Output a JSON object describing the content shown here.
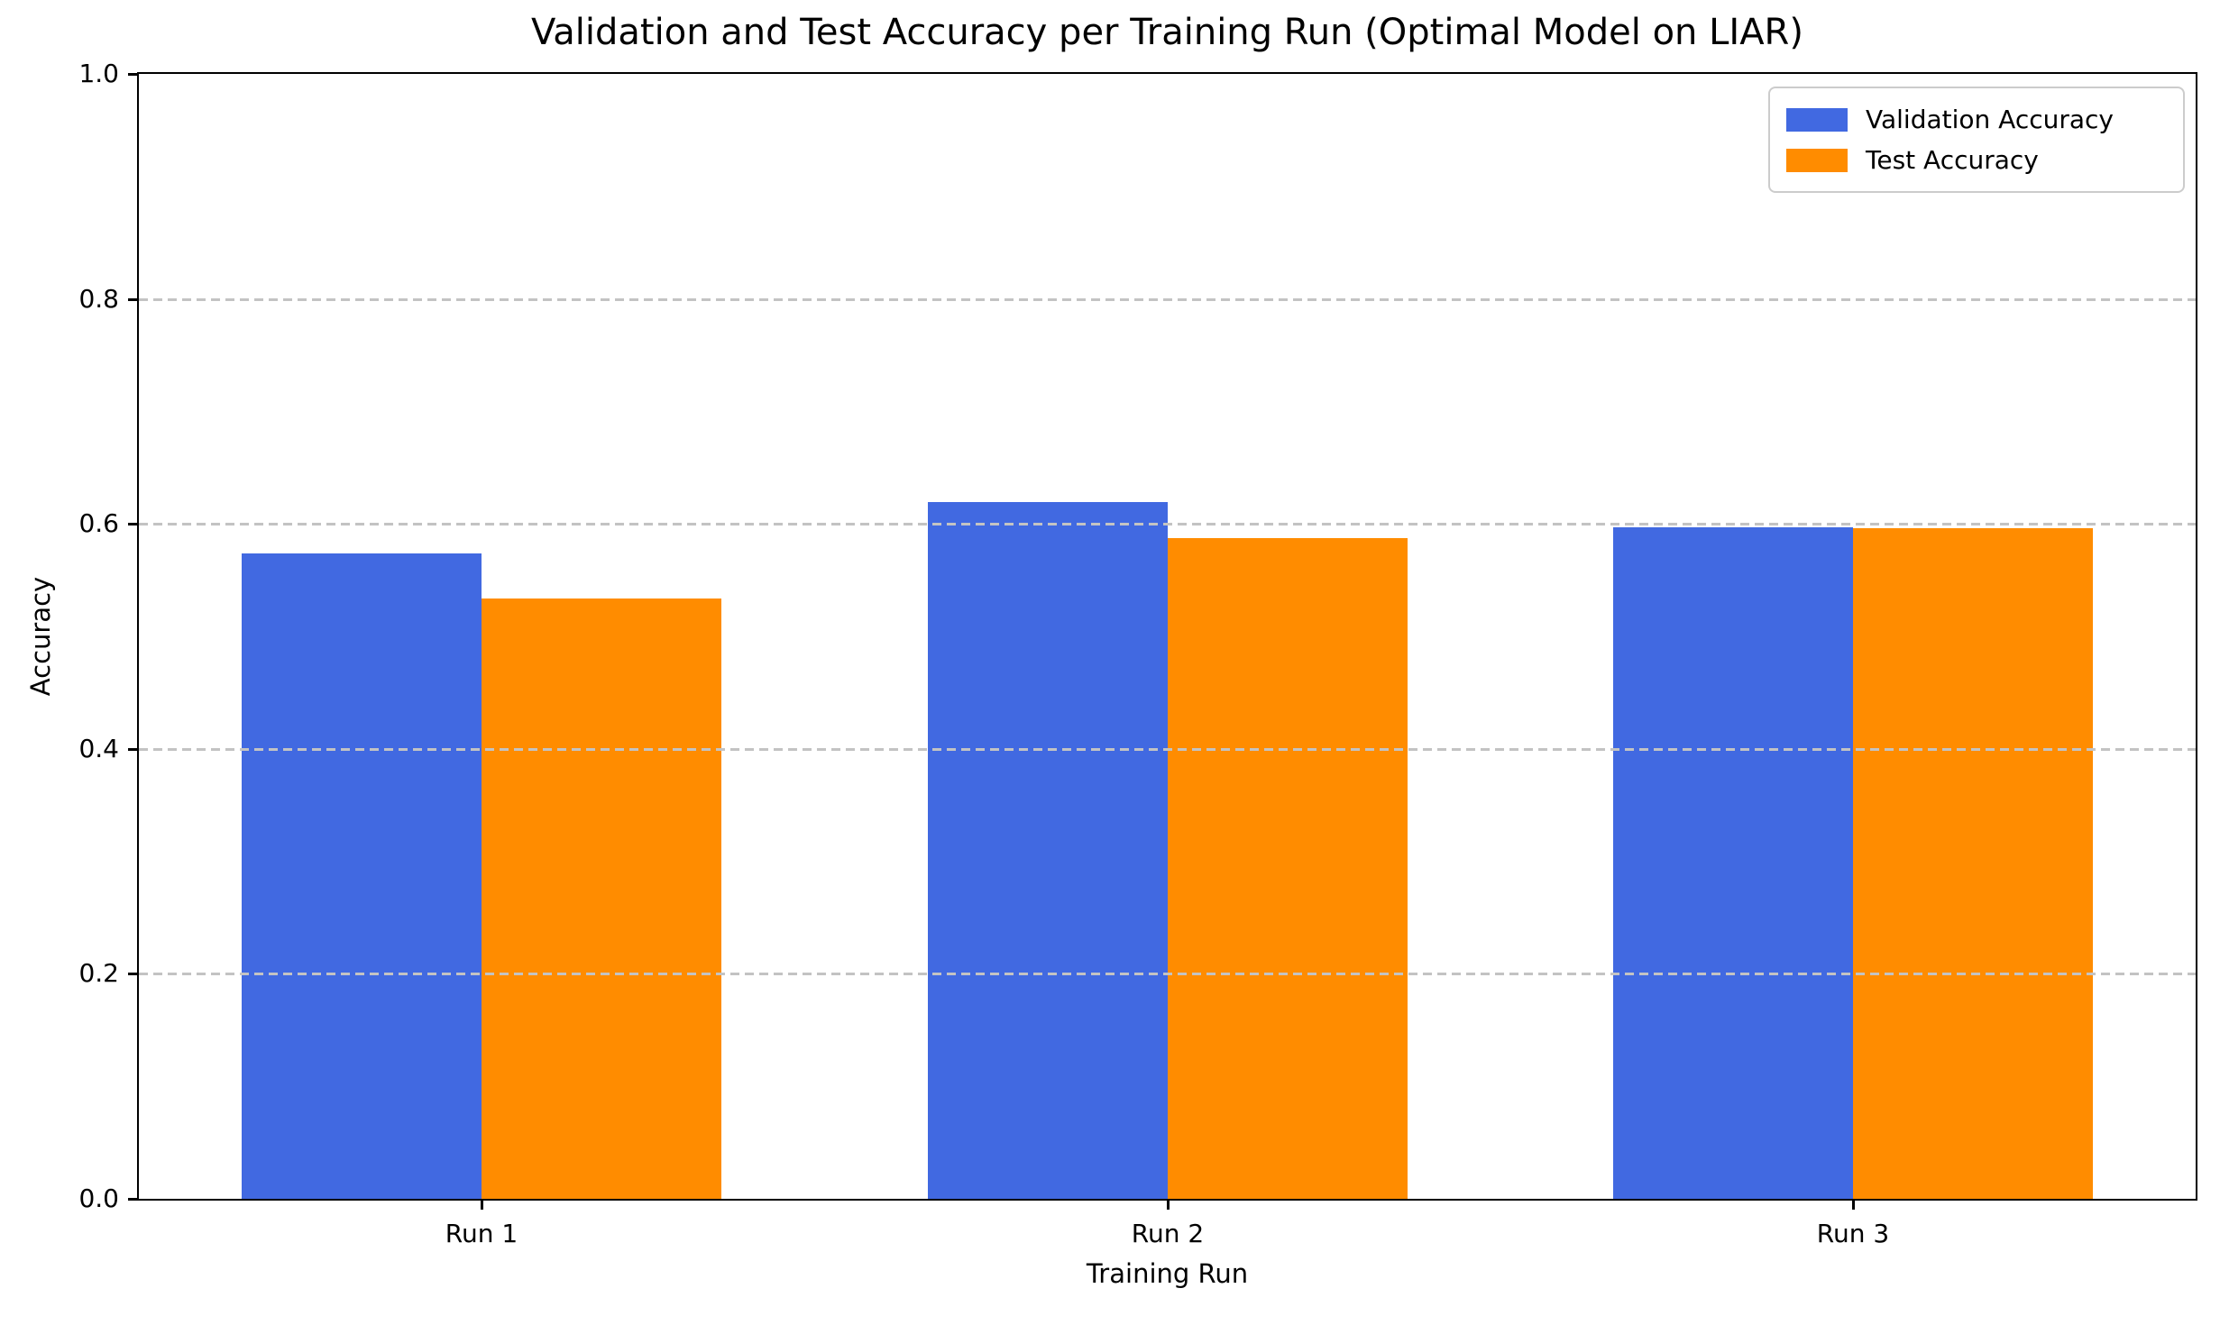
{
  "chart_data": {
    "type": "bar",
    "title": "Validation and Test Accuracy per Training Run (Optimal Model on LIAR)",
    "xlabel": "Training Run",
    "ylabel": "Accuracy",
    "categories": [
      "Run 1",
      "Run 2",
      "Run 3"
    ],
    "series": [
      {
        "name": "Validation Accuracy",
        "color": "#4169e1",
        "values": [
          0.574,
          0.619,
          0.597
        ]
      },
      {
        "name": "Test Accuracy",
        "color": "#ff8c00",
        "values": [
          0.534,
          0.587,
          0.596
        ]
      }
    ],
    "ylim": [
      0.0,
      1.0
    ],
    "ytick_values": [
      0.0,
      0.2,
      0.4,
      0.6,
      0.8,
      1.0
    ],
    "ytick_labels": [
      "0.0",
      "0.2",
      "0.4",
      "0.6",
      "0.8",
      "1.0"
    ],
    "bar_width_fraction": 0.35,
    "grid": {
      "axis": "y",
      "style": "dashed",
      "color": "#c3c3c3",
      "above_bars": true
    },
    "legend_position": "upper right",
    "colors": {
      "axis": "#000000",
      "background": "#ffffff",
      "text": "#000000"
    }
  }
}
